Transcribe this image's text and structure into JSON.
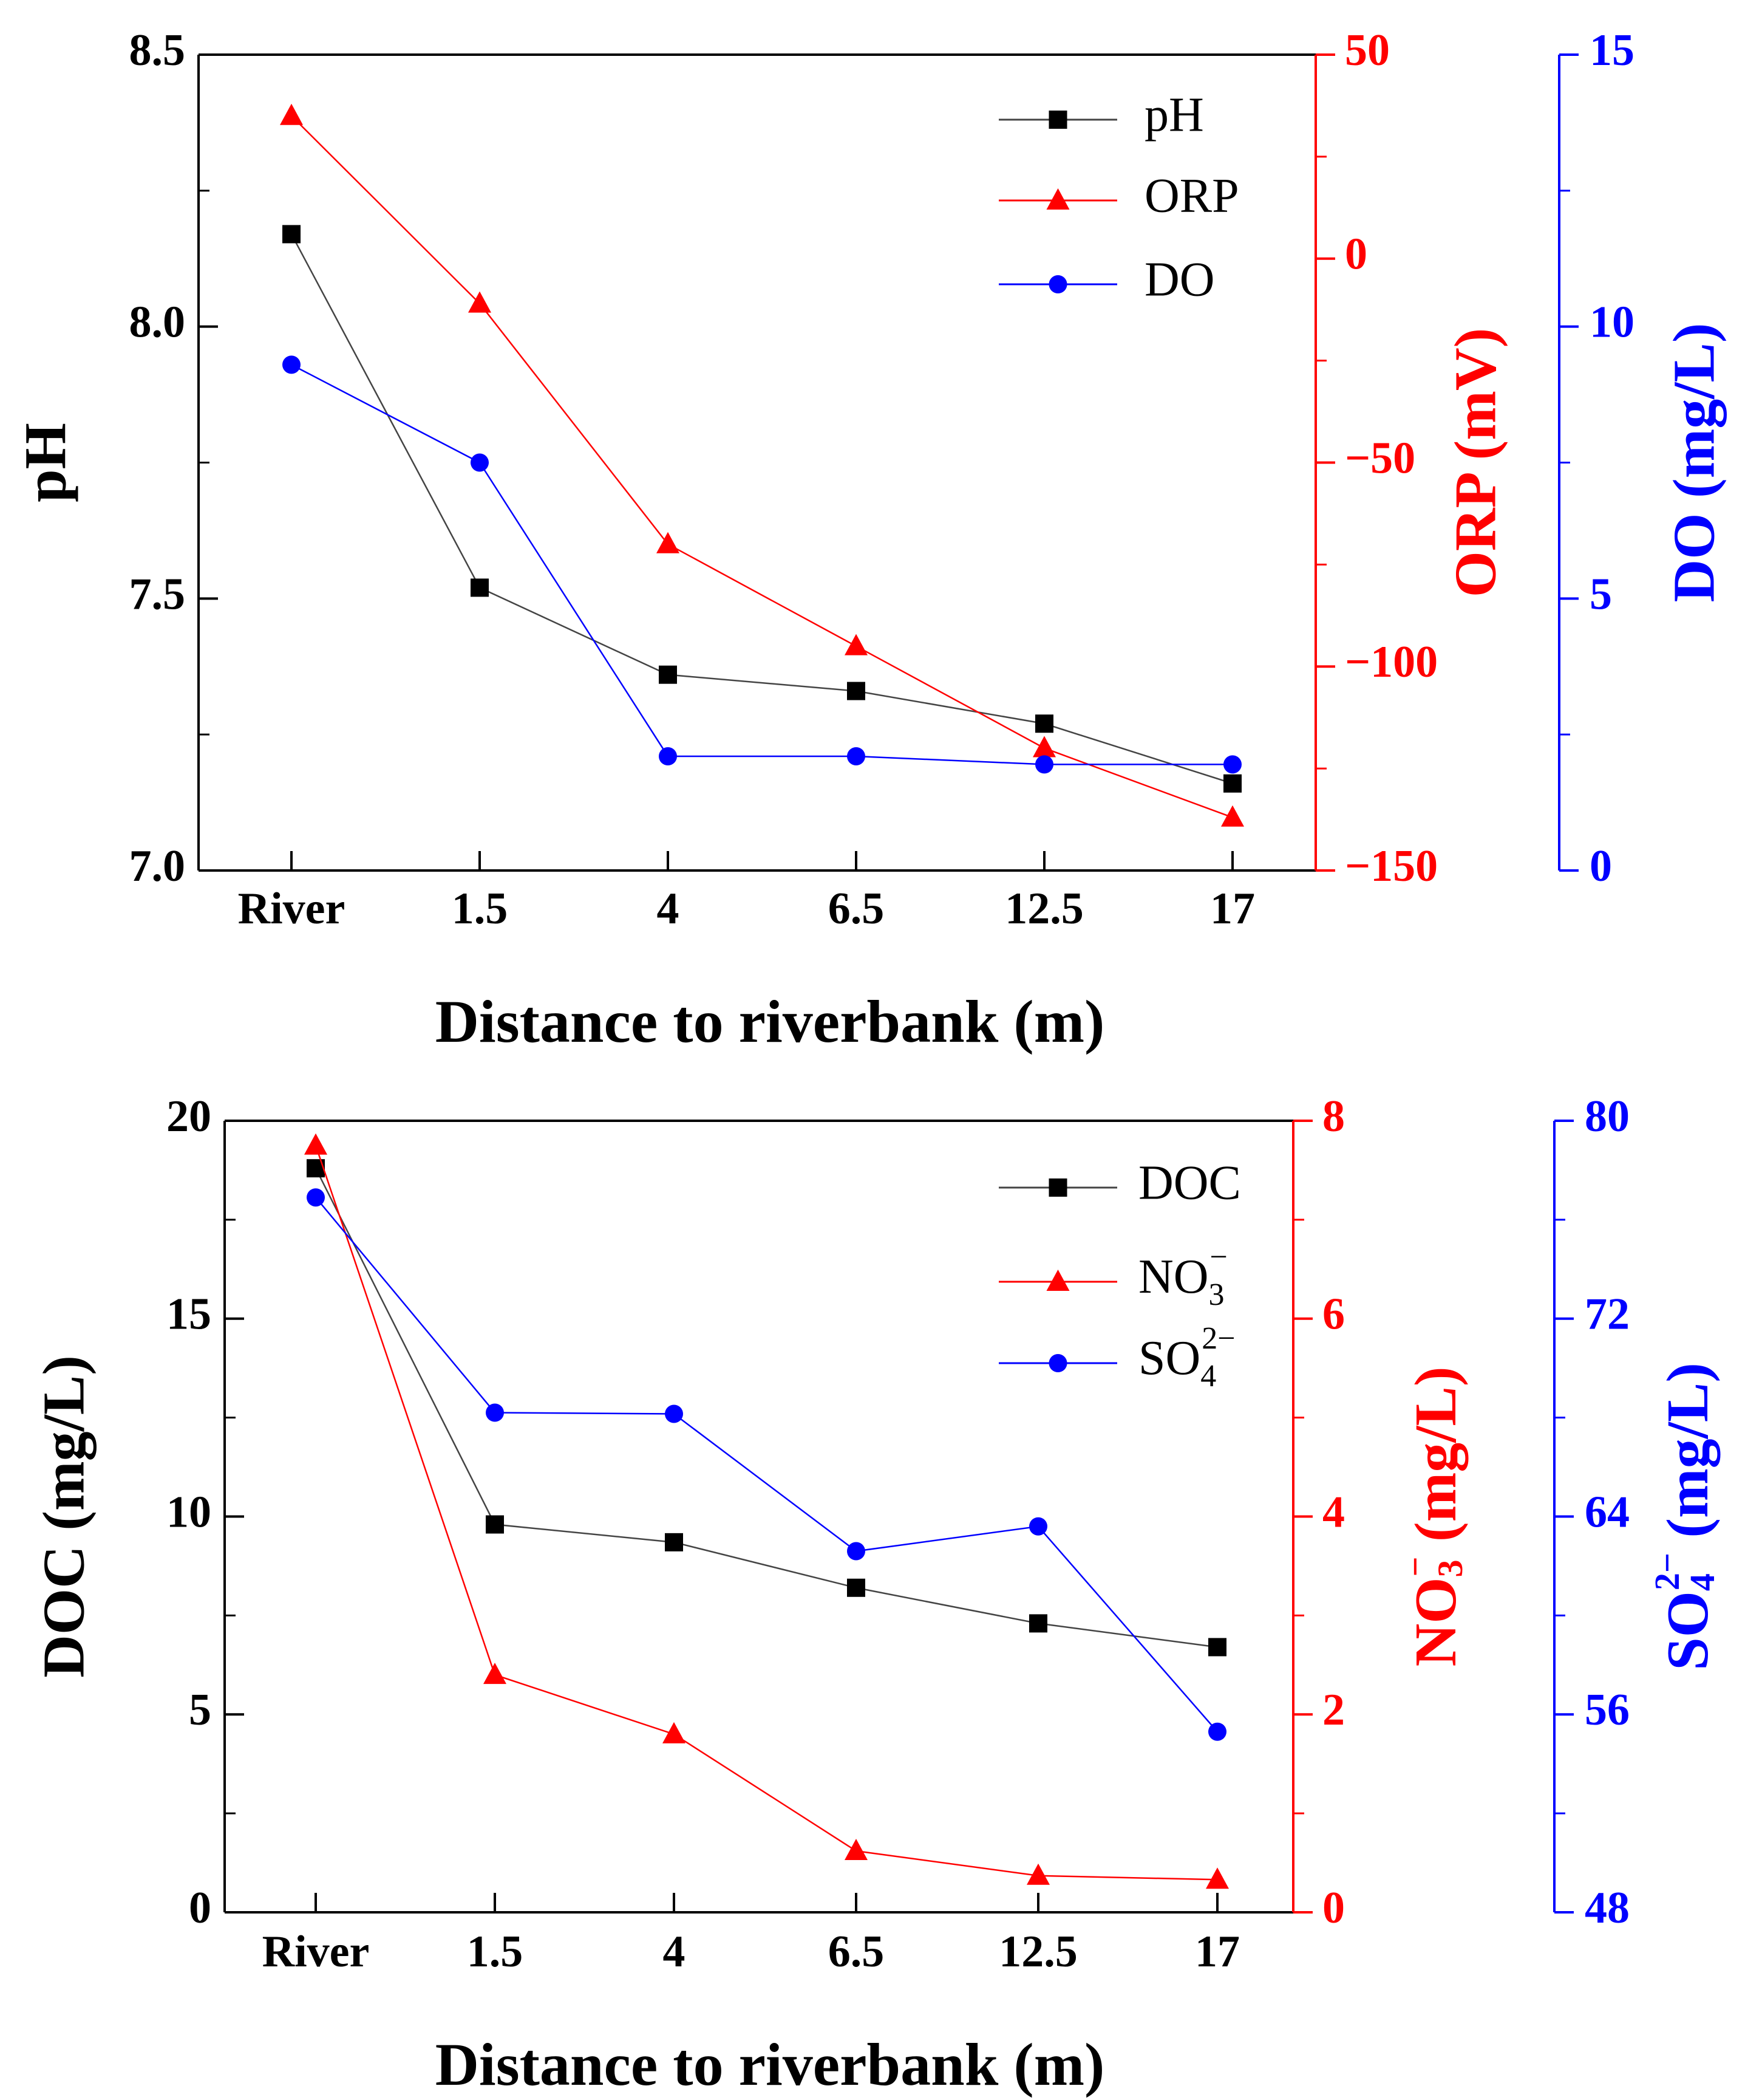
{
  "chart_data": [
    {
      "type": "line",
      "categories": [
        "River",
        "1.5",
        "4",
        "6.5",
        "12.5",
        "17"
      ],
      "xlabel": "Distance to riverbank (m)",
      "axes": {
        "left": {
          "label": "pH",
          "range": [
            7.0,
            8.5
          ],
          "ticks": [
            7.0,
            7.5,
            8.0,
            8.5
          ],
          "tick_labels": [
            "7.0",
            "7.5",
            "8.0",
            "8.5"
          ],
          "color": "#000000"
        },
        "right1": {
          "label": "ORP (mV)",
          "range": [
            -150,
            50
          ],
          "ticks": [
            -150,
            -100,
            -50,
            0,
            50
          ],
          "tick_labels": [
            "−150",
            "−100",
            "−50",
            "0",
            "50"
          ],
          "color": "#ff0000"
        },
        "right2": {
          "label": "DO (mg/L)",
          "range": [
            0,
            15
          ],
          "ticks": [
            0,
            5,
            10,
            15
          ],
          "tick_labels": [
            "0",
            "5",
            "10",
            "15"
          ],
          "color": "#0000ff"
        }
      },
      "series": [
        {
          "name": "pH",
          "axis": "left",
          "marker": "square",
          "color": "#000000",
          "line_color": "#444444",
          "values": [
            8.17,
            7.52,
            7.36,
            7.33,
            7.27,
            7.16
          ]
        },
        {
          "name": "ORP",
          "axis": "right1",
          "marker": "triangle",
          "color": "#ff0000",
          "line_color": "#ff0000",
          "values": [
            35,
            -11,
            -70,
            -95,
            -120,
            -137
          ]
        },
        {
          "name": "DO",
          "axis": "right2",
          "marker": "circle",
          "color": "#0000ff",
          "line_color": "#0000ff",
          "values": [
            9.3,
            7.5,
            2.1,
            2.1,
            1.95,
            1.95
          ]
        }
      ],
      "legend": {
        "position": "top-right",
        "entries": [
          "pH",
          "ORP",
          "DO"
        ]
      }
    },
    {
      "type": "line",
      "categories": [
        "River",
        "1.5",
        "4",
        "6.5",
        "12.5",
        "17"
      ],
      "xlabel": "Distance to riverbank (m)",
      "axes": {
        "left": {
          "label": "DOC (mg/L)",
          "range": [
            0,
            20
          ],
          "ticks": [
            0,
            5,
            10,
            15,
            20
          ],
          "tick_labels": [
            "0",
            "5",
            "10",
            "15",
            "20"
          ],
          "color": "#000000"
        },
        "right1": {
          "label": "NO3− (mg/L)",
          "range": [
            0,
            8
          ],
          "ticks": [
            0,
            2,
            4,
            6,
            8
          ],
          "tick_labels": [
            "0",
            "2",
            "4",
            "6",
            "8"
          ],
          "color": "#ff0000"
        },
        "right2": {
          "label": "SO42− (mg/L)",
          "range": [
            48,
            80
          ],
          "ticks": [
            48,
            56,
            64,
            72,
            80
          ],
          "tick_labels": [
            "48",
            "56",
            "64",
            "72",
            "80"
          ],
          "color": "#0000ff"
        }
      },
      "series": [
        {
          "name": "DOC",
          "axis": "left",
          "marker": "square",
          "color": "#000000",
          "line_color": "#444444",
          "values": [
            18.8,
            9.8,
            9.35,
            8.2,
            7.3,
            6.7
          ]
        },
        {
          "name": "NO3−",
          "axis": "right1",
          "marker": "triangle",
          "color": "#ff0000",
          "line_color": "#ff0000",
          "values": [
            7.75,
            2.4,
            1.8,
            0.62,
            0.37,
            0.33
          ]
        },
        {
          "name": "SO42−",
          "axis": "right2",
          "marker": "circle",
          "color": "#0000ff",
          "line_color": "#0000ff",
          "values": [
            76.9,
            68.2,
            68.15,
            62.6,
            63.6,
            55.3
          ]
        }
      ],
      "legend": {
        "position": "top-right",
        "entries": [
          "DOC",
          "NO3−",
          "SO42−"
        ]
      }
    }
  ]
}
